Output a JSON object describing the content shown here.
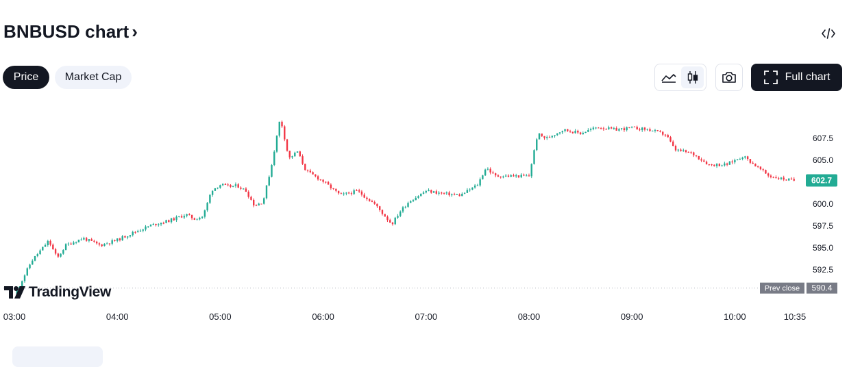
{
  "header": {
    "title": "BNBUSD chart",
    "chevron": "›",
    "embed_icon": "code-embed-icon"
  },
  "toolbar": {
    "tabs": [
      {
        "label": "Price",
        "active": true
      },
      {
        "label": "Market Cap",
        "active": false
      }
    ],
    "chart_style_options": [
      "area-chart-icon",
      "candlestick-icon"
    ],
    "selected_style": "candlestick-icon",
    "snapshot_icon": "camera-icon",
    "full_chart_label": "Full chart",
    "full_chart_icon": "fullscreen-icon"
  },
  "watermark": "TradingView",
  "chart_data": {
    "type": "candlestick",
    "symbol": "BNBUSD",
    "x_ticks": [
      "03:00",
      "04:00",
      "05:00",
      "06:00",
      "07:00",
      "08:00",
      "09:00",
      "10:00",
      "10:35"
    ],
    "y_ticks": [
      "607.5",
      "605.0",
      "600.0",
      "597.5",
      "595.0",
      "592.5"
    ],
    "ylim": [
      588.5,
      610.8
    ],
    "last_price": 602.7,
    "last_price_label": "602.7",
    "prev_close": 590.4,
    "prev_close_label": "Prev close",
    "prev_close_value_label": "590.4",
    "up_color": "#22ab94",
    "down_color": "#f23645",
    "price_path": [
      [
        "03:00",
        589.5
      ],
      [
        "03:05",
        591.5
      ],
      [
        "03:10",
        593.5
      ],
      [
        "03:20",
        595.8
      ],
      [
        "03:25",
        593.8
      ],
      [
        "03:30",
        595.3
      ],
      [
        "03:40",
        596.1
      ],
      [
        "03:50",
        595.3
      ],
      [
        "04:00",
        595.9
      ],
      [
        "04:10",
        596.8
      ],
      [
        "04:20",
        597.6
      ],
      [
        "04:30",
        598.1
      ],
      [
        "04:40",
        598.8
      ],
      [
        "04:45",
        598.3
      ],
      [
        "04:50",
        598.6
      ],
      [
        "04:55",
        601.6
      ],
      [
        "05:00",
        602.2
      ],
      [
        "05:05",
        602.0
      ],
      [
        "05:10",
        602.1
      ],
      [
        "05:15",
        601.5
      ],
      [
        "05:20",
        599.8
      ],
      [
        "05:25",
        600.3
      ],
      [
        "05:30",
        604.5
      ],
      [
        "05:35",
        609.9
      ],
      [
        "05:40",
        605.2
      ],
      [
        "05:45",
        606.0
      ],
      [
        "05:50",
        603.8
      ],
      [
        "06:00",
        602.6
      ],
      [
        "06:10",
        601.0
      ],
      [
        "06:20",
        601.5
      ],
      [
        "06:30",
        600.0
      ],
      [
        "06:40",
        597.7
      ],
      [
        "06:45",
        599.2
      ],
      [
        "06:50",
        600.3
      ],
      [
        "07:00",
        601.5
      ],
      [
        "07:10",
        601.2
      ],
      [
        "07:20",
        601.0
      ],
      [
        "07:30",
        602.2
      ],
      [
        "07:35",
        604.2
      ],
      [
        "07:40",
        603.2
      ],
      [
        "08:00",
        603.2
      ],
      [
        "08:05",
        608.0
      ],
      [
        "08:10",
        607.5
      ],
      [
        "08:20",
        608.5
      ],
      [
        "08:30",
        608.1
      ],
      [
        "08:40",
        608.8
      ],
      [
        "08:50",
        608.5
      ],
      [
        "09:00",
        608.7
      ],
      [
        "09:10",
        608.5
      ],
      [
        "09:20",
        607.9
      ],
      [
        "09:25",
        606.2
      ],
      [
        "09:35",
        605.8
      ],
      [
        "09:45",
        604.5
      ],
      [
        "09:55",
        604.5
      ],
      [
        "10:05",
        605.5
      ],
      [
        "10:10",
        604.7
      ],
      [
        "10:20",
        603.2
      ],
      [
        "10:30",
        602.8
      ],
      [
        "10:35",
        602.7
      ]
    ]
  }
}
